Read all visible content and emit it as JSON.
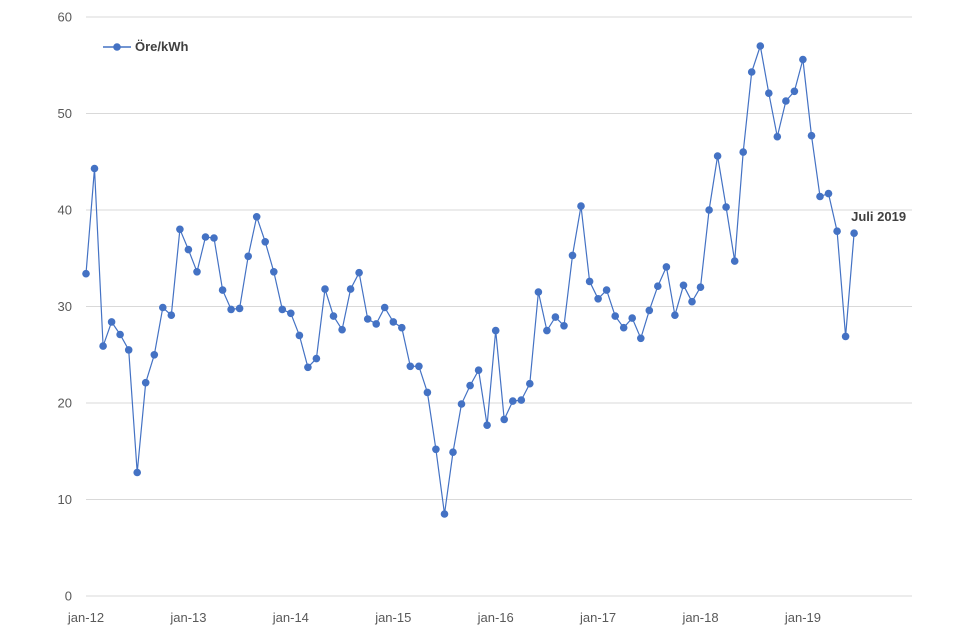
{
  "chart_data": {
    "type": "line",
    "title": "",
    "xlabel": "",
    "ylabel": "",
    "ylim": [
      0,
      60
    ],
    "y_ticks": [
      "0",
      "10",
      "20",
      "30",
      "40",
      "50",
      "60"
    ],
    "x_tick_labels": [
      "jan-12",
      "jan-13",
      "jan-14",
      "jan-15",
      "jan-16",
      "jan-17",
      "jan-18",
      "jan-19"
    ],
    "grid": true,
    "legend_position": "top-left",
    "series_color": "#4472c4",
    "series": [
      {
        "name": "Öre/kWh",
        "x": [
          "2012-01",
          "2012-02",
          "2012-03",
          "2012-04",
          "2012-05",
          "2012-06",
          "2012-07",
          "2012-08",
          "2012-09",
          "2012-10",
          "2012-11",
          "2012-12",
          "2013-01",
          "2013-02",
          "2013-03",
          "2013-04",
          "2013-05",
          "2013-06",
          "2013-07",
          "2013-08",
          "2013-09",
          "2013-10",
          "2013-11",
          "2013-12",
          "2014-01",
          "2014-02",
          "2014-03",
          "2014-04",
          "2014-05",
          "2014-06",
          "2014-07",
          "2014-08",
          "2014-09",
          "2014-10",
          "2014-11",
          "2014-12",
          "2015-01",
          "2015-02",
          "2015-03",
          "2015-04",
          "2015-05",
          "2015-06",
          "2015-07",
          "2015-08",
          "2015-09",
          "2015-10",
          "2015-11",
          "2015-12",
          "2016-01",
          "2016-02",
          "2016-03",
          "2016-04",
          "2016-05",
          "2016-06",
          "2016-07",
          "2016-08",
          "2016-09",
          "2016-10",
          "2016-11",
          "2016-12",
          "2017-01",
          "2017-02",
          "2017-03",
          "2017-04",
          "2017-05",
          "2017-06",
          "2017-07",
          "2017-08",
          "2017-09",
          "2017-10",
          "2017-11",
          "2017-12",
          "2018-01",
          "2018-02",
          "2018-03",
          "2018-04",
          "2018-05",
          "2018-06",
          "2018-07",
          "2018-08",
          "2018-09",
          "2018-10",
          "2018-11",
          "2018-12",
          "2019-01",
          "2019-02",
          "2019-03",
          "2019-04",
          "2019-05",
          "2019-06",
          "2019-07"
        ],
        "values": [
          33.4,
          44.3,
          25.9,
          28.4,
          27.1,
          25.5,
          12.8,
          22.1,
          25.0,
          29.9,
          29.1,
          38.0,
          35.9,
          33.6,
          37.2,
          37.1,
          31.7,
          29.7,
          29.8,
          35.2,
          39.3,
          36.7,
          33.6,
          29.7,
          29.3,
          27.0,
          23.7,
          24.6,
          31.8,
          29.0,
          27.6,
          31.8,
          33.5,
          28.7,
          28.2,
          29.9,
          28.4,
          27.8,
          23.8,
          23.8,
          21.1,
          15.2,
          8.5,
          14.9,
          19.9,
          21.8,
          23.4,
          17.7,
          27.5,
          18.3,
          20.2,
          20.3,
          22.0,
          31.5,
          27.5,
          28.9,
          28.0,
          35.3,
          40.4,
          32.6,
          30.8,
          31.7,
          29.0,
          27.8,
          28.8,
          26.7,
          29.6,
          32.1,
          34.1,
          29.1,
          32.2,
          30.5,
          32.0,
          40.0,
          45.6,
          40.3,
          34.7,
          46.0,
          54.3,
          57.0,
          52.1,
          47.6,
          51.3,
          52.3,
          55.6,
          47.7,
          41.4,
          41.7,
          37.8,
          26.9,
          37.6
        ]
      }
    ],
    "annotations": [
      {
        "text": "Juli 2019",
        "x": "2019-07",
        "y": 37.6
      }
    ]
  }
}
